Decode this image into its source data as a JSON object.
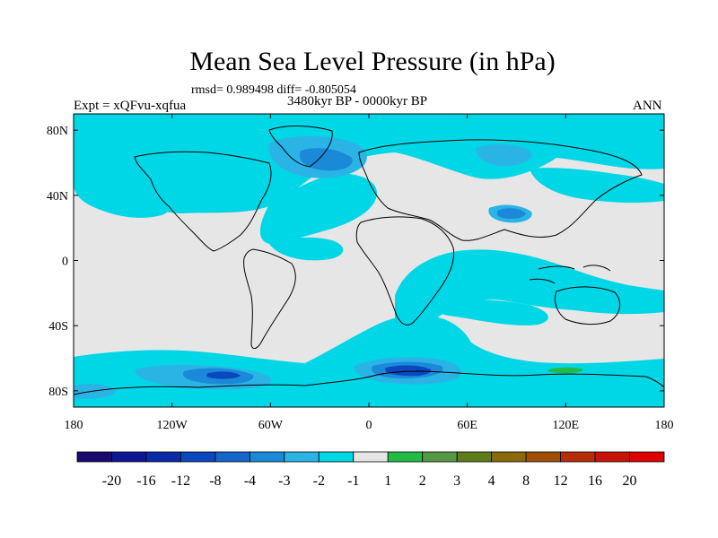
{
  "chart_data": {
    "type": "heatmap",
    "title": "Mean Sea Level Pressure (in hPa)",
    "stats_label": "rmsd= 0.989498 diff= -0.805054",
    "left_label": "Expt = xQFvu-xqfua",
    "center_label": "3480kyr BP - 0000kyr BP",
    "right_label": "ANN",
    "x_ticks": [
      {
        "value": -180,
        "label": "180"
      },
      {
        "value": -120,
        "label": "120W"
      },
      {
        "value": -60,
        "label": "60W"
      },
      {
        "value": 0,
        "label": "0"
      },
      {
        "value": 60,
        "label": "60E"
      },
      {
        "value": 120,
        "label": "120E"
      },
      {
        "value": 180,
        "label": "180"
      }
    ],
    "y_ticks": [
      {
        "value": 80,
        "label": "80N"
      },
      {
        "value": 40,
        "label": "40N"
      },
      {
        "value": 0,
        "label": "0"
      },
      {
        "value": -40,
        "label": "40S"
      },
      {
        "value": -80,
        "label": "80S"
      }
    ],
    "xlim": [
      -180,
      180
    ],
    "ylim": [
      -90,
      90
    ],
    "colorbar": {
      "levels": [
        "-20",
        "-16",
        "-12",
        "-8",
        "-4",
        "-3",
        "-2",
        "-1",
        "1",
        "2",
        "3",
        "4",
        "8",
        "12",
        "16",
        "20"
      ],
      "colors": [
        "#1a0a6e",
        "#0c1796",
        "#0a2aaa",
        "#0b47be",
        "#1466cc",
        "#1a8ad8",
        "#2ab4e6",
        "#00d7e6",
        "#e6e6e6",
        "#22bb44",
        "#559944",
        "#5e7c18",
        "#8a6a0c",
        "#a24e08",
        "#b82c08",
        "#c81408",
        "#de0000"
      ]
    },
    "regions": [
      {
        "name": "north-atlantic-low",
        "level": "-3 to -2",
        "lon": [
          -35,
          -5
        ],
        "lat": [
          55,
          75
        ]
      },
      {
        "name": "southern-ocean-low",
        "level": "-8 to -4",
        "lon": [
          0,
          40
        ],
        "lat": [
          -75,
          -60
        ]
      },
      {
        "name": "weddell-low",
        "level": "-4 to -3",
        "lon": [
          -110,
          -70
        ],
        "lat": [
          -80,
          -65
        ]
      },
      {
        "name": "indian-ocean-negative",
        "level": "-2 to -1",
        "lon": [
          40,
          120
        ],
        "lat": [
          -30,
          10
        ]
      },
      {
        "name": "pacific-neutral",
        "level": "-1 to 1",
        "lon": [
          -180,
          -90
        ],
        "lat": [
          -40,
          40
        ]
      },
      {
        "name": "antarctic-positive",
        "level": "1 to 2",
        "lon": [
          115,
          140
        ],
        "lat": [
          -75,
          -70
        ]
      }
    ]
  }
}
